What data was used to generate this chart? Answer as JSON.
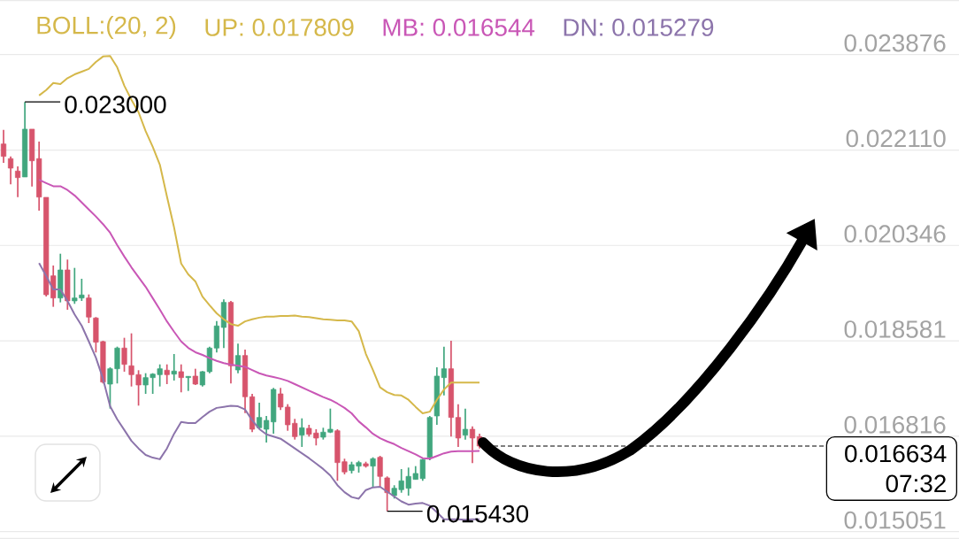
{
  "chart_data": {
    "type": "candlestick",
    "legend_title": "BOLL:(20, 2)",
    "legend": "top left",
    "grid": "y",
    "tick_labels": "y",
    "categories": [
      null,
      null,
      null,
      null,
      null,
      null,
      null,
      null,
      null,
      null,
      null,
      null,
      null,
      null,
      null,
      null,
      null,
      null,
      null,
      null,
      null,
      null,
      null,
      null,
      null,
      null,
      null,
      null,
      null,
      null,
      null,
      null,
      null,
      null,
      null,
      null,
      null,
      null,
      null,
      null,
      null,
      null,
      null,
      null,
      null,
      null,
      null,
      null,
      null,
      null,
      null,
      null,
      null,
      null,
      null,
      null,
      null,
      null,
      null,
      null,
      null,
      null,
      null,
      null,
      null,
      null,
      null,
      null,
      null,
      null,
      null,
      null,
      null,
      null,
      null,
      null,
      null,
      null,
      null,
      null,
      null,
      null,
      null,
      null,
      null,
      null,
      null,
      null,
      null,
      null,
      null,
      null,
      null,
      null,
      null,
      null,
      null,
      null,
      null,
      null,
      null,
      null,
      null,
      null,
      null,
      null,
      null,
      null,
      null,
      null,
      null,
      null,
      null,
      null,
      null,
      null,
      null,
      null,
      null,
      null,
      null,
      null,
      null,
      null,
      null,
      null,
      null,
      null,
      null,
      null,
      null,
      null,
      null,
      null,
      null
    ],
    "ohlc": [
      [
        0.022222,
        0.022484,
        0.021874,
        0.021993
      ],
      [
        0.021951,
        0.021993,
        0.021476,
        0.021775
      ],
      [
        0.021721,
        0.021808,
        0.02124,
        0.0216
      ],
      [
        0.021612,
        0.023,
        0.021612,
        0.022496
      ],
      [
        0.022496,
        0.022496,
        0.021436,
        0.021911
      ],
      [
        0.021951,
        0.022267,
        0.020989,
        0.02124
      ],
      [
        0.021235,
        0.021235,
        0.019401,
        0.019434
      ],
      [
        0.019783,
        0.019974,
        0.01921,
        0.019373
      ],
      [
        0.019373,
        0.020192,
        0.019292,
        0.019892
      ],
      [
        0.019892,
        0.020084,
        0.019156,
        0.019319
      ],
      [
        0.019319,
        0.01993,
        0.019265,
        0.019373
      ],
      [
        0.019373,
        0.019729,
        0.019319,
        0.019429
      ],
      [
        0.019373,
        0.019439,
        0.01891,
        0.01902
      ],
      [
        0.019003,
        0.01902,
        0.018365,
        0.018555
      ],
      [
        0.018566,
        0.018583,
        0.017792,
        0.017818
      ],
      [
        0.01778,
        0.018091,
        0.017327,
        0.018064
      ],
      [
        0.018064,
        0.018473,
        0.017792,
        0.018447
      ],
      [
        0.018447,
        0.018637,
        0.01801,
        0.018145
      ],
      [
        0.018119,
        0.018719,
        0.017736,
        0.017955
      ],
      [
        0.017955,
        0.018037,
        0.017382,
        0.017764
      ],
      [
        0.017764,
        0.017982,
        0.0176,
        0.0179
      ],
      [
        0.0179,
        0.017982,
        0.0176,
        0.017965
      ],
      [
        0.017955,
        0.018145,
        0.017736,
        0.018064
      ],
      [
        0.018037,
        0.018145,
        0.01778,
        0.017955
      ],
      [
        0.017965,
        0.018337,
        0.017846,
        0.018021
      ],
      [
        0.01801,
        0.018145,
        0.017628,
        0.0179
      ],
      [
        0.0179,
        0.017928,
        0.017654,
        0.017923
      ],
      [
        0.017928,
        0.018064,
        0.017764,
        0.01778
      ],
      [
        0.017764,
        0.018021,
        0.017736,
        0.01801
      ],
      [
        0.01801,
        0.018473,
        0.017982,
        0.018447
      ],
      [
        0.018447,
        0.018948,
        0.018365,
        0.018856
      ],
      [
        0.018828,
        0.019347,
        0.018447,
        0.019292
      ],
      [
        0.019292,
        0.019319,
        0.017792,
        0.018119
      ],
      [
        0.018042,
        0.018529,
        0.017982,
        0.018309
      ],
      [
        0.018309,
        0.018419,
        0.017245,
        0.017546
      ],
      [
        0.017546,
        0.0176,
        0.016891,
        0.016945
      ],
      [
        0.016973,
        0.017436,
        0.016945,
        0.017163
      ],
      [
        0.016945,
        0.017191,
        0.0167,
        0.017109
      ],
      [
        0.017081,
        0.01771,
        0.016863,
        0.017682
      ],
      [
        0.0176,
        0.01771,
        0.017301,
        0.017355
      ],
      [
        0.017355,
        0.017409,
        0.016917,
        0.017027
      ],
      [
        0.017055,
        0.017137,
        0.016754,
        0.016809
      ],
      [
        0.016836,
        0.017147,
        0.016618,
        0.016973
      ],
      [
        0.016962,
        0.017027,
        0.016809,
        0.016852
      ],
      [
        0.016875,
        0.016945,
        0.016646,
        0.016782
      ],
      [
        0.016798,
        0.016973,
        0.016754,
        0.016891
      ],
      [
        0.016891,
        0.017327,
        0.016875,
        0.016945
      ],
      [
        0.016917,
        0.016945,
        0.015991,
        0.016328
      ],
      [
        0.016344,
        0.0164,
        0.01611,
        0.016155
      ],
      [
        0.016181,
        0.016344,
        0.016127,
        0.01629
      ],
      [
        0.016263,
        0.016361,
        0.016143,
        0.016328
      ],
      [
        0.016307,
        0.016344,
        0.016236,
        0.016263
      ],
      [
        0.016263,
        0.016426,
        0.015881,
        0.0164
      ],
      [
        0.016426,
        0.016454,
        0.015881,
        0.016073
      ],
      [
        0.016045,
        0.016073,
        0.01543,
        0.015771
      ],
      [
        0.015717,
        0.015909,
        0.015663,
        0.015853
      ],
      [
        0.015827,
        0.016208,
        0.015771,
        0.015991
      ],
      [
        0.015853,
        0.016236,
        0.015717,
        0.016073
      ],
      [
        0.016017,
        0.016263,
        0.016017,
        0.016127
      ],
      [
        0.016033,
        0.0164,
        0.015991,
        0.016384
      ],
      [
        0.016426,
        0.017191,
        0.016372,
        0.017163
      ],
      [
        0.017191,
        0.018091,
        0.017027,
        0.017928
      ],
      [
        0.0179,
        0.018473,
        0.017573,
        0.018064
      ],
      [
        0.018064,
        0.018583,
        0.016809,
        0.017163
      ],
      [
        0.017163,
        0.017409,
        0.016618,
        0.016782
      ],
      [
        0.016836,
        0.017327,
        0.016754,
        0.016945
      ],
      [
        0.016945,
        0.016999,
        0.016318,
        0.016782
      ],
      [
        0.016809,
        0.016863,
        0.01659,
        0.016634
      ],
      null,
      null,
      null,
      null,
      null,
      null,
      null,
      null,
      null,
      null,
      null,
      null,
      null,
      null,
      null,
      null,
      null,
      null,
      null,
      null,
      null,
      null,
      null,
      null,
      null,
      null,
      null,
      null,
      null,
      null,
      null,
      null,
      null,
      null,
      null,
      null,
      null,
      null,
      null,
      null,
      null,
      null,
      null,
      null,
      null,
      null,
      null,
      null,
      null,
      null,
      null,
      null,
      null,
      null,
      null,
      null,
      null,
      null,
      null,
      null,
      null,
      null,
      null,
      null,
      null,
      null,
      null
    ],
    "colors": [
      "#d7546c",
      "#d7546c",
      "#d7546c",
      "#41a67e",
      "#d7546c",
      "#d7546c",
      "#d7546c",
      "#d7546c",
      "#41a67e",
      "#d7546c",
      "#41a67e",
      "#41a67e",
      "#d7546c",
      "#d7546c",
      "#d7546c",
      "#41a67e",
      "#41a67e",
      "#d7546c",
      "#d7546c",
      "#d7546c",
      "#41a67e",
      "#41a67e",
      "#41a67e",
      "#d7546c",
      "#41a67e",
      "#d7546c",
      "#41a67e",
      "#d7546c",
      "#41a67e",
      "#41a67e",
      "#41a67e",
      "#41a67e",
      "#d7546c",
      "#41a67e",
      "#d7546c",
      "#d7546c",
      "#41a67e",
      "#41a67e",
      "#41a67e",
      "#d7546c",
      "#d7546c",
      "#d7546c",
      "#41a67e",
      "#d7546c",
      "#d7546c",
      "#41a67e",
      "#41a67e",
      "#d7546c",
      "#d7546c",
      "#41a67e",
      "#41a67e",
      "#d7546c",
      "#41a67e",
      "#d7546c",
      "#d7546c",
      "#41a67e",
      "#41a67e",
      "#41a67e",
      "#41a67e",
      "#41a67e",
      "#41a67e",
      "#41a67e",
      "#41a67e",
      "#d7546c",
      "#d7546c",
      "#41a67e",
      "#d7546c",
      "#d7546c",
      null,
      null,
      null,
      null,
      null,
      null,
      null,
      null,
      null,
      null,
      null,
      null,
      null,
      null,
      null,
      null,
      null,
      null,
      null,
      null,
      null,
      null,
      null,
      null,
      null,
      null,
      null,
      null,
      null,
      null,
      null,
      null,
      null,
      null,
      null,
      null,
      null,
      null,
      null,
      null,
      null,
      null,
      null,
      null,
      null,
      null,
      null,
      null,
      null,
      null,
      null,
      null,
      null,
      null,
      null,
      null,
      null,
      null,
      null,
      null,
      null,
      null,
      null,
      null,
      null,
      null,
      null
    ],
    "series": [
      {
        "name": "UP: 0.017809",
        "type": "line",
        "color": "#d5b84a",
        "values": [
          null,
          null,
          null,
          null,
          null,
          0.02312,
          0.02322,
          0.02335,
          0.02333,
          0.02344,
          0.02351,
          0.02356,
          0.02361,
          0.02374,
          0.02384,
          0.02385,
          0.02364,
          0.0233,
          0.02304,
          0.02281,
          0.02246,
          0.02217,
          0.02184,
          0.02125,
          0.02068,
          0.02001,
          0.01981,
          0.01968,
          0.0194,
          0.01924,
          0.01909,
          0.01898,
          0.01889,
          0.01886,
          0.01894,
          0.01898,
          0.01901,
          0.01903,
          0.01903,
          0.01904,
          0.01904,
          0.01905,
          0.01903,
          0.01902,
          0.019,
          0.01898,
          0.01897,
          0.01896,
          0.01896,
          0.01894,
          0.01876,
          0.01834,
          0.01804,
          0.01772,
          0.01763,
          0.01758,
          0.01757,
          0.01749,
          0.01736,
          0.01724,
          0.01727,
          0.01749,
          0.01768,
          0.01781,
          0.01781,
          0.01781,
          0.01781,
          0.017809,
          null,
          null,
          null,
          null,
          null,
          null,
          null,
          null,
          null,
          null,
          null,
          null,
          null,
          null,
          null,
          null,
          null,
          null,
          null,
          null,
          null,
          null,
          null,
          null,
          null,
          null,
          null,
          null,
          null,
          null,
          null,
          null,
          null,
          null,
          null,
          null,
          null,
          null,
          null,
          null,
          null,
          null,
          null,
          null,
          null,
          null,
          null,
          null,
          null,
          null,
          null,
          null,
          null,
          null,
          null,
          null,
          null,
          null,
          null,
          null,
          null,
          null,
          null,
          null,
          null,
          null,
          null
        ]
      },
      {
        "name": "MB: 0.016544",
        "type": "line",
        "color": "#c957b6",
        "values": [
          null,
          null,
          null,
          null,
          null,
          0.02156,
          0.0215,
          0.02144,
          0.02144,
          0.02137,
          0.02127,
          0.02114,
          0.02101,
          0.02088,
          0.02074,
          0.02058,
          0.02035,
          0.02014,
          0.01994,
          0.01976,
          0.01958,
          0.01937,
          0.01916,
          0.01894,
          0.01875,
          0.01857,
          0.01845,
          0.01837,
          0.01832,
          0.01826,
          0.01821,
          0.01817,
          0.01814,
          0.01812,
          0.0181,
          0.01804,
          0.01798,
          0.01794,
          0.01791,
          0.01788,
          0.01784,
          0.01778,
          0.01772,
          0.01766,
          0.0176,
          0.01754,
          0.01749,
          0.01742,
          0.01734,
          0.01724,
          0.01709,
          0.01698,
          0.01686,
          0.01678,
          0.01672,
          0.01667,
          0.0166,
          0.01654,
          0.01648,
          0.01641,
          0.0164,
          0.01645,
          0.0165,
          0.01653,
          0.01654,
          0.01654,
          0.01654,
          0.016544,
          null,
          null,
          null,
          null,
          null,
          null,
          null,
          null,
          null,
          null,
          null,
          null,
          null,
          null,
          null,
          null,
          null,
          null,
          null,
          null,
          null,
          null,
          null,
          null,
          null,
          null,
          null,
          null,
          null,
          null,
          null,
          null,
          null,
          null,
          null,
          null,
          null,
          null,
          null,
          null,
          null,
          null,
          null,
          null,
          null,
          null,
          null,
          null,
          null,
          null,
          null,
          null,
          null,
          null,
          null,
          null,
          null,
          null,
          null,
          null,
          null,
          null,
          null,
          null,
          null,
          null,
          null
        ]
      },
      {
        "name": "DN: 0.015279",
        "type": "line",
        "color": "#8c74ab",
        "values": [
          null,
          null,
          null,
          null,
          null,
          0.02002,
          0.01978,
          0.01953,
          0.01953,
          0.01932,
          0.01907,
          0.01886,
          0.01857,
          0.01827,
          0.01788,
          0.01737,
          0.01713,
          0.01693,
          0.01673,
          0.01659,
          0.01647,
          0.01642,
          0.01639,
          0.01659,
          0.01686,
          0.01708,
          0.01706,
          0.01706,
          0.01717,
          0.01727,
          0.01734,
          0.01736,
          0.01738,
          0.01737,
          0.01731,
          0.01711,
          0.01695,
          0.01685,
          0.01681,
          0.01677,
          0.01668,
          0.01659,
          0.0165,
          0.01641,
          0.01631,
          0.01621,
          0.01609,
          0.01591,
          0.01578,
          0.01569,
          0.01566,
          0.01582,
          0.01587,
          0.01588,
          0.01579,
          0.0157,
          0.01561,
          0.01555,
          0.01557,
          0.01558,
          0.01553,
          0.01541,
          0.01528,
          0.01528,
          0.01528,
          0.01527,
          0.01528,
          0.015279,
          null,
          null,
          null,
          null,
          null,
          null,
          null,
          null,
          null,
          null,
          null,
          null,
          null,
          null,
          null,
          null,
          null,
          null,
          null,
          null,
          null,
          null,
          null,
          null,
          null,
          null,
          null,
          null,
          null,
          null,
          null,
          null,
          null,
          null,
          null,
          null,
          null,
          null,
          null,
          null,
          null,
          null,
          null,
          null,
          null,
          null,
          null,
          null,
          null,
          null,
          null,
          null,
          null,
          null,
          null,
          null,
          null,
          null,
          null,
          null,
          null,
          null,
          null,
          null,
          null,
          null,
          null
        ]
      }
    ],
    "ylim": [
      0.014915,
      0.024886
    ],
    "yticks": [
      0.023876,
      {
        "value": 0.02211,
        "label": "0.022110"
      },
      0.020346,
      0.018581,
      0.016816,
      0.015051
    ],
    "ref_lines": [
      {
        "axis": "y",
        "value": 0.016634,
        "color": "#000000",
        "line_style": "dashed"
      }
    ],
    "annotations": [
      "0.023000",
      "0.015430",
      "0.016634",
      "07:32"
    ]
  }
}
